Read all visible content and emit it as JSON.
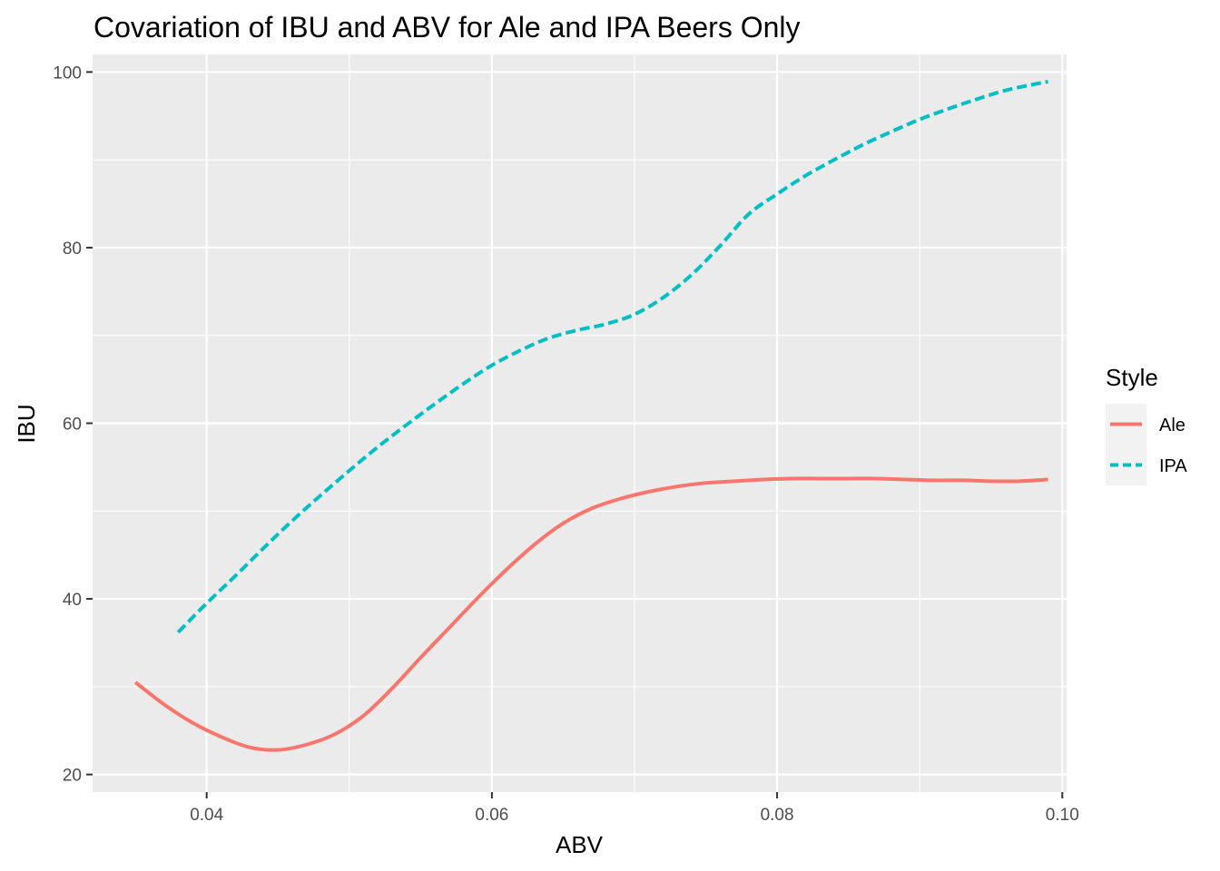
{
  "chart_data": {
    "type": "line",
    "title": "Covariation of IBU and ABV for Ale and IPA Beers Only",
    "xlabel": "ABV",
    "ylabel": "IBU",
    "xlim": [
      0.032,
      0.1003
    ],
    "ylim": [
      18.0,
      102.0
    ],
    "xticks": [
      0.04,
      0.06,
      0.08,
      0.1
    ],
    "xtick_labels": [
      "0.04",
      "0.06",
      "0.08",
      "0.10"
    ],
    "yticks": [
      20,
      40,
      60,
      80,
      100
    ],
    "ytick_labels": [
      "20",
      "40",
      "60",
      "80",
      "100"
    ],
    "grid": true,
    "legend": {
      "title": "Style",
      "position": "right"
    },
    "series": [
      {
        "name": "Ale",
        "color": "#F8766D",
        "dash": "solid",
        "x": [
          0.035,
          0.037,
          0.039,
          0.041,
          0.043,
          0.045,
          0.047,
          0.049,
          0.051,
          0.053,
          0.055,
          0.057,
          0.059,
          0.061,
          0.063,
          0.065,
          0.067,
          0.069,
          0.071,
          0.073,
          0.075,
          0.077,
          0.079,
          0.081,
          0.083,
          0.085,
          0.087,
          0.089,
          0.091,
          0.093,
          0.095,
          0.097,
          0.099
        ],
        "y": [
          30.5,
          28.0,
          25.9,
          24.3,
          23.1,
          22.8,
          23.4,
          24.6,
          26.7,
          29.8,
          33.3,
          36.7,
          40.1,
          43.3,
          46.2,
          48.6,
          50.3,
          51.4,
          52.2,
          52.8,
          53.2,
          53.4,
          53.6,
          53.7,
          53.7,
          53.7,
          53.7,
          53.6,
          53.5,
          53.5,
          53.4,
          53.4,
          53.6
        ]
      },
      {
        "name": "IPA",
        "color": "#00BFC4",
        "dash": "dashed",
        "x": [
          0.038,
          0.04,
          0.042,
          0.044,
          0.046,
          0.048,
          0.05,
          0.052,
          0.054,
          0.056,
          0.058,
          0.06,
          0.062,
          0.064,
          0.066,
          0.068,
          0.07,
          0.072,
          0.074,
          0.076,
          0.078,
          0.08,
          0.082,
          0.084,
          0.086,
          0.088,
          0.09,
          0.092,
          0.094,
          0.096,
          0.098,
          0.099
        ],
        "y": [
          36.2,
          39.5,
          42.6,
          45.8,
          48.9,
          51.8,
          54.6,
          57.3,
          59.8,
          62.2,
          64.5,
          66.6,
          68.3,
          69.7,
          70.6,
          71.3,
          72.4,
          74.3,
          76.9,
          80.2,
          83.8,
          86.1,
          88.2,
          90.0,
          91.7,
          93.2,
          94.6,
          95.8,
          96.9,
          97.9,
          98.6,
          98.9
        ]
      }
    ]
  }
}
